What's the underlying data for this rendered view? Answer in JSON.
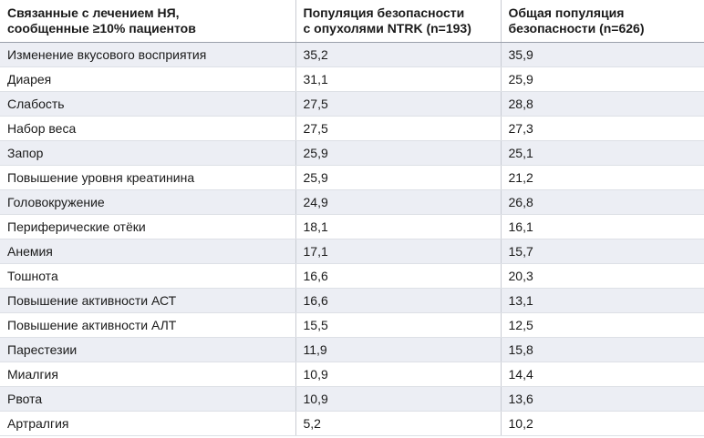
{
  "table": {
    "header": [
      [
        "Связанные с лечением НЯ,",
        "сообщенные ≥10% пациентов"
      ],
      [
        "Популяция безопасности",
        "с опухолями NTRK (n=193)"
      ],
      [
        "Общая популяция",
        "безопасности (n=626)"
      ]
    ],
    "rows": [
      [
        "Изменение вкусового восприятия",
        "35,2",
        "35,9"
      ],
      [
        "Диарея",
        "31,1",
        "25,9"
      ],
      [
        "Слабость",
        "27,5",
        "28,8"
      ],
      [
        "Набор веса",
        "27,5",
        "27,3"
      ],
      [
        "Запор",
        "25,9",
        "25,1"
      ],
      [
        "Повышение уровня креатинина",
        "25,9",
        "21,2"
      ],
      [
        "Головокружение",
        "24,9",
        "26,8"
      ],
      [
        "Периферические отёки",
        "18,1",
        "16,1"
      ],
      [
        "Анемия",
        "17,1",
        "15,7"
      ],
      [
        "Тошнота",
        "16,6",
        "20,3"
      ],
      [
        "Повышение активности АСТ",
        "16,6",
        "13,1"
      ],
      [
        "Повышение активности АЛТ",
        "15,5",
        "12,5"
      ],
      [
        "Парестезии",
        "11,9",
        "15,8"
      ],
      [
        "Миалгия",
        "10,9",
        "14,4"
      ],
      [
        "Рвота",
        "10,9",
        "13,6"
      ],
      [
        "Артралгия",
        "5,2",
        "10,2"
      ]
    ]
  }
}
